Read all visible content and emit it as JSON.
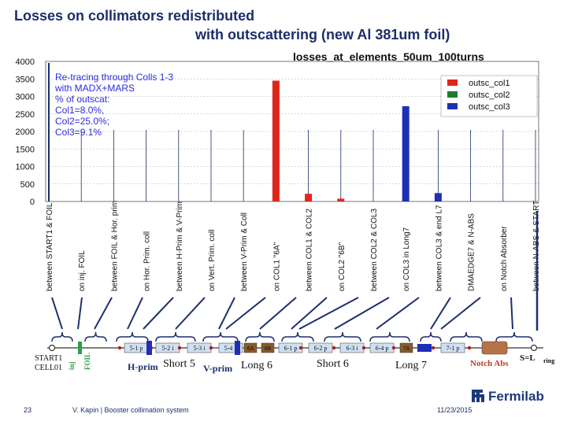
{
  "slide": {
    "title_line1": "Losses on collimators redistributed",
    "title_line2": "with  outscattering (new Al 381um foil)",
    "page_number": "23",
    "author": "V. Kapin | Booster collimation system",
    "date": "11/23/2015",
    "logo_text": "Fermilab"
  },
  "chart_data": {
    "type": "bar",
    "title": "losses_at_elements_50um_100turns",
    "ylim": [
      0,
      4000
    ],
    "y_ticks": [
      "0",
      "500",
      "1000",
      "1500",
      "2000",
      "2500",
      "3000",
      "3500",
      "4000"
    ],
    "grid": "horizontal-dotted",
    "legend_position": "top-right",
    "colors": {
      "outsc_col1": "#e0261c",
      "outsc_col2": "#1e7a2c",
      "outsc_col3": "#1f2fb5",
      "marker": "#1c2f6b",
      "annotation": "#2c2ce0"
    },
    "annotation": [
      "Re-tracing through Colls 1-3",
      "with MADX+MARS",
      "% of outscat:",
      "Col1=8.0%,",
      "Col2=25.0%;",
      "Col3=9.1%"
    ],
    "categories": [
      "between START1 & FOIL",
      "on inj. FOIL",
      "between FOIL & Hor. prim",
      "on Hor. Prim. coll",
      "between H-Prim & V-Prim",
      "on Vert. Prim. coll",
      "between V-Prim & Coll",
      "on COL1 \"6A\"",
      "between COL1 & COL2",
      "on COL2 \"6B\"",
      "between COL2 & COL3",
      "on COL3 in Long7",
      "between COL3 & end L7",
      "DMAEDGE7 & N-ABS",
      "on Notch Absorber",
      "between N-ABS & START"
    ],
    "series": [
      {
        "name": "outsc_col1",
        "values": [
          0,
          0,
          0,
          0,
          0,
          0,
          0,
          3450,
          220,
          80,
          0,
          0,
          0,
          0,
          0,
          0
        ]
      },
      {
        "name": "outsc_col2",
        "values": [
          0,
          0,
          0,
          0,
          0,
          0,
          0,
          0,
          0,
          0,
          0,
          0,
          0,
          0,
          0,
          0
        ]
      },
      {
        "name": "outsc_col3",
        "values": [
          0,
          0,
          0,
          0,
          0,
          0,
          0,
          0,
          0,
          0,
          0,
          2720,
          240,
          0,
          0,
          0
        ]
      }
    ],
    "marker_lines": [
      true,
      false,
      false,
      false,
      false,
      false,
      false,
      false,
      false,
      false,
      false,
      false,
      false,
      false,
      false,
      false
    ]
  },
  "lattice": {
    "start_label": "START1",
    "cell_label": "CELL01",
    "inj_label": "inj",
    "foil_label": "FOIL",
    "hprim_label": "H-prim",
    "vprim_label": "V-prim",
    "short5_label": "Short 5",
    "long6_label": "Long 6",
    "short6_label": "Short 6",
    "long7_label": "Long 7",
    "notch_label": "Notch Abs",
    "end_label": "S=L",
    "end_sub": "ring",
    "quads": [
      "5-1 p",
      "5-2 i",
      "5-3 i",
      "5-4 p",
      "6-1 p",
      "6-2 p",
      "6-3 i",
      "6-4 p",
      "7-1 p"
    ],
    "coll_labels": [
      "6A",
      "6B",
      "7A"
    ]
  }
}
